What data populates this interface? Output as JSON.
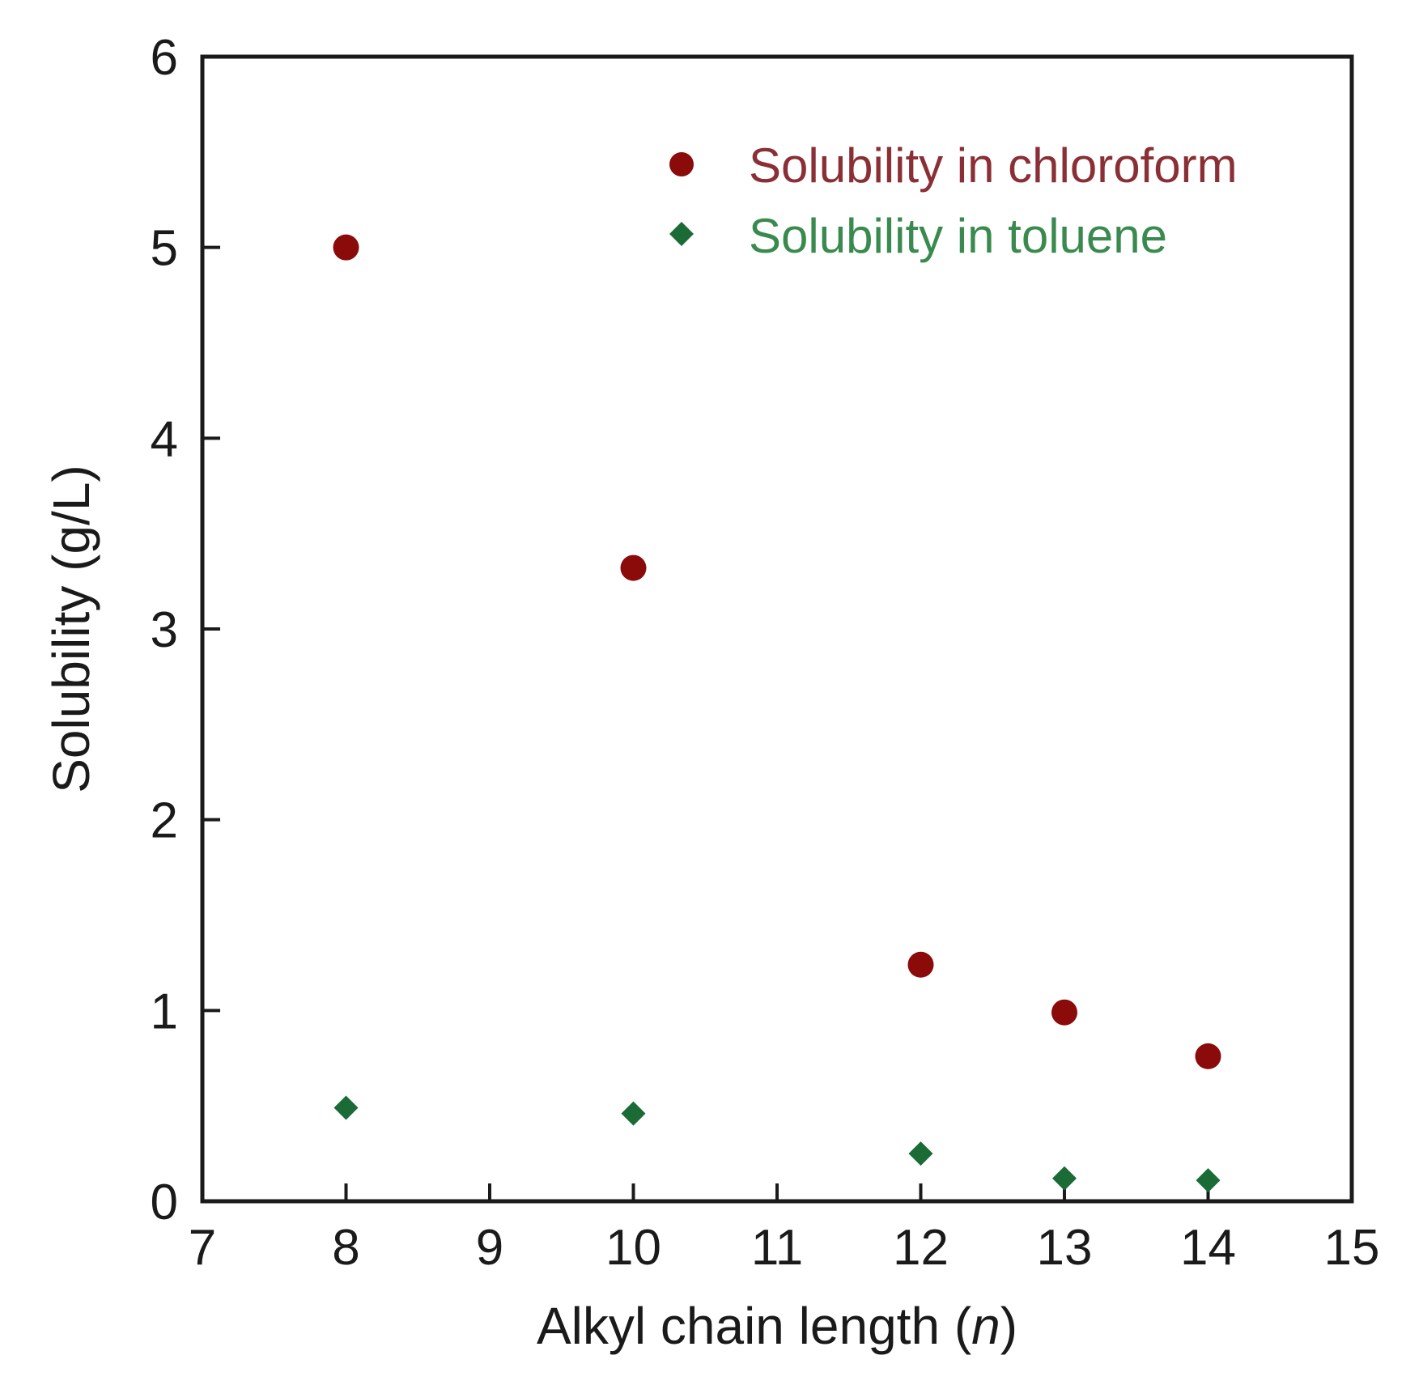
{
  "chart_data": {
    "type": "scatter",
    "xlabel_main": "Alkyl chain length (",
    "xlabel_var": "n",
    "xlabel_close": ")",
    "ylabel": "Solubility (g/L)",
    "xlim": [
      7,
      15
    ],
    "ylim": [
      0,
      6
    ],
    "x_ticks": [
      "7",
      "8",
      "9",
      "10",
      "11",
      "12",
      "13",
      "14",
      "15"
    ],
    "y_ticks": [
      "0",
      "1",
      "2",
      "3",
      "4",
      "5",
      "6"
    ],
    "grid": false,
    "legend_position": "top-right",
    "series": [
      {
        "name": "Solubility in chloroform",
        "marker": "circle",
        "color": "#8b0a0a",
        "text_color": "#8a2f35",
        "x": [
          8,
          10,
          12,
          13,
          14
        ],
        "y": [
          5.0,
          3.32,
          1.24,
          0.99,
          0.76
        ]
      },
      {
        "name": "Solubility in toluene",
        "marker": "diamond",
        "color": "#1a6b35",
        "text_color": "#3a8a4f",
        "x": [
          8,
          10,
          12,
          13,
          14
        ],
        "y": [
          0.49,
          0.46,
          0.25,
          0.12,
          0.11
        ]
      }
    ]
  }
}
